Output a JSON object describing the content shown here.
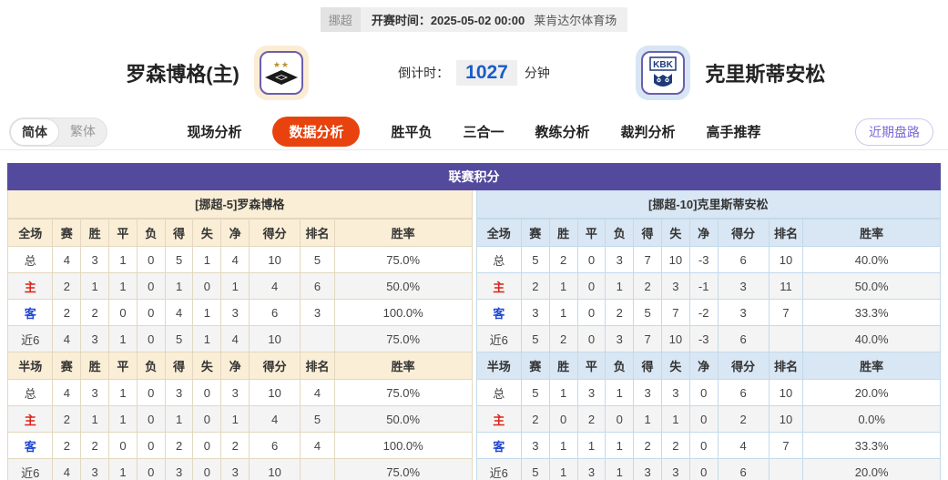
{
  "top_bar": {
    "league": "挪超",
    "kickoff_label": "开赛时间：",
    "kickoff_time": "2025-05-02 00:00",
    "venue": "莱肯达尔体育场"
  },
  "header": {
    "home_team": "罗森博格(主)",
    "away_team": "克里斯蒂安松",
    "away_logo_text": "KBK",
    "countdown_label": "倒计时：",
    "countdown_value": "1027",
    "countdown_unit": "分钟"
  },
  "lang_toggle": {
    "simplified": "简体",
    "traditional": "繁体"
  },
  "tabs": [
    {
      "label": "现场分析",
      "active": false
    },
    {
      "label": "数据分析",
      "active": true
    },
    {
      "label": "胜平负",
      "active": false
    },
    {
      "label": "三合一",
      "active": false
    },
    {
      "label": "教练分析",
      "active": false
    },
    {
      "label": "裁判分析",
      "active": false
    },
    {
      "label": "高手推荐",
      "active": false
    }
  ],
  "recent_button": "近期盘路",
  "league_table": {
    "title": "联赛积分",
    "full_header": [
      "全场",
      "赛",
      "胜",
      "平",
      "负",
      "得",
      "失",
      "净",
      "得分",
      "排名",
      "胜率"
    ],
    "half_header": [
      "半场",
      "赛",
      "胜",
      "平",
      "负",
      "得",
      "失",
      "净",
      "得分",
      "排名",
      "胜率"
    ],
    "home": {
      "subtitle": "[挪超-5]罗森博格",
      "full_rows": [
        [
          "总",
          "4",
          "3",
          "1",
          "0",
          "5",
          "1",
          "4",
          "10",
          "5",
          "75.0%"
        ],
        [
          "主",
          "2",
          "1",
          "1",
          "0",
          "1",
          "0",
          "1",
          "4",
          "6",
          "50.0%"
        ],
        [
          "客",
          "2",
          "2",
          "0",
          "0",
          "4",
          "1",
          "3",
          "6",
          "3",
          "100.0%"
        ],
        [
          "近6",
          "4",
          "3",
          "1",
          "0",
          "5",
          "1",
          "4",
          "10",
          "",
          "75.0%"
        ]
      ],
      "half_rows": [
        [
          "总",
          "4",
          "3",
          "1",
          "0",
          "3",
          "0",
          "3",
          "10",
          "4",
          "75.0%"
        ],
        [
          "主",
          "2",
          "1",
          "1",
          "0",
          "1",
          "0",
          "1",
          "4",
          "5",
          "50.0%"
        ],
        [
          "客",
          "2",
          "2",
          "0",
          "0",
          "2",
          "0",
          "2",
          "6",
          "4",
          "100.0%"
        ],
        [
          "近6",
          "4",
          "3",
          "1",
          "0",
          "3",
          "0",
          "3",
          "10",
          "",
          "75.0%"
        ]
      ]
    },
    "away": {
      "subtitle": "[挪超-10]克里斯蒂安松",
      "full_rows": [
        [
          "总",
          "5",
          "2",
          "0",
          "3",
          "7",
          "10",
          "-3",
          "6",
          "10",
          "40.0%"
        ],
        [
          "主",
          "2",
          "1",
          "0",
          "1",
          "2",
          "3",
          "-1",
          "3",
          "11",
          "50.0%"
        ],
        [
          "客",
          "3",
          "1",
          "0",
          "2",
          "5",
          "7",
          "-2",
          "3",
          "7",
          "33.3%"
        ],
        [
          "近6",
          "5",
          "2",
          "0",
          "3",
          "7",
          "10",
          "-3",
          "6",
          "",
          "40.0%"
        ]
      ],
      "half_rows": [
        [
          "总",
          "5",
          "1",
          "3",
          "1",
          "3",
          "3",
          "0",
          "6",
          "10",
          "20.0%"
        ],
        [
          "主",
          "2",
          "0",
          "2",
          "0",
          "1",
          "1",
          "0",
          "2",
          "10",
          "0.0%"
        ],
        [
          "客",
          "3",
          "1",
          "1",
          "1",
          "2",
          "2",
          "0",
          "4",
          "7",
          "33.3%"
        ],
        [
          "近6",
          "5",
          "1",
          "3",
          "1",
          "3",
          "3",
          "0",
          "6",
          "",
          "20.0%"
        ]
      ]
    }
  },
  "colors": {
    "purple": "#544a9d",
    "active-tab": "#e8430f",
    "countdown-blue": "#1a5cc8",
    "red-label": "#d9251c",
    "blue-label": "#1f46d4",
    "home-bg": "#faeed6",
    "home-border": "#e3d8bf",
    "away-bg": "#d9e6f3",
    "away-border": "#c3daec",
    "recent-purple": "#7b68d9"
  }
}
